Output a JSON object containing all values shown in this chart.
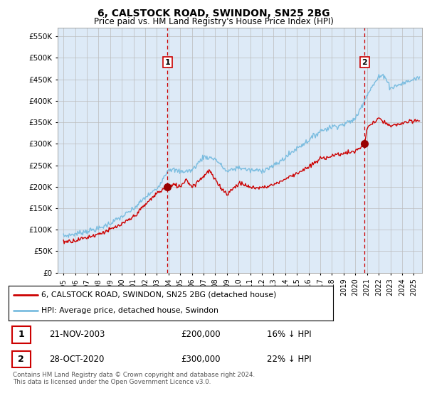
{
  "title": "6, CALSTOCK ROAD, SWINDON, SN25 2BG",
  "subtitle": "Price paid vs. HM Land Registry's House Price Index (HPI)",
  "legend_line1": "6, CALSTOCK ROAD, SWINDON, SN25 2BG (detached house)",
  "legend_line2": "HPI: Average price, detached house, Swindon",
  "footnote": "Contains HM Land Registry data © Crown copyright and database right 2024.\nThis data is licensed under the Open Government Licence v3.0.",
  "transaction1_date": "21-NOV-2003",
  "transaction1_price": "£200,000",
  "transaction1_hpi": "16% ↓ HPI",
  "transaction2_date": "28-OCT-2020",
  "transaction2_price": "£300,000",
  "transaction2_hpi": "22% ↓ HPI",
  "transaction1_x": 2003.9,
  "transaction1_y": 200000,
  "transaction2_x": 2020.8,
  "transaction2_y": 300000,
  "hpi_color": "#7bbde0",
  "price_color": "#cc0000",
  "marker_color": "#990000",
  "vline_color": "#cc0000",
  "background_color": "#ddeaf7",
  "plot_bg": "#ffffff",
  "ylim_min": 0,
  "ylim_max": 570000,
  "yticks": [
    0,
    50000,
    100000,
    150000,
    200000,
    250000,
    300000,
    350000,
    400000,
    450000,
    500000,
    550000
  ],
  "ytick_labels": [
    "£0",
    "£50K",
    "£100K",
    "£150K",
    "£200K",
    "£250K",
    "£300K",
    "£350K",
    "£400K",
    "£450K",
    "£500K",
    "£550K"
  ],
  "xlim_min": 1994.5,
  "xlim_max": 2025.7,
  "hpi_anchors_x": [
    1995,
    1996,
    1997,
    1998,
    1999,
    2000,
    2001,
    2002,
    2003,
    2004,
    2005,
    2006,
    2007,
    2008,
    2009,
    2010,
    2011,
    2012,
    2013,
    2014,
    2015,
    2016,
    2017,
    2018,
    2019,
    2020,
    2021,
    2022,
    2022.5,
    2023,
    2024,
    2025,
    2025.5
  ],
  "hpi_anchors_y": [
    85000,
    90000,
    97000,
    102000,
    115000,
    130000,
    148000,
    175000,
    195000,
    242000,
    235000,
    238000,
    270000,
    265000,
    235000,
    245000,
    238000,
    238000,
    248000,
    268000,
    290000,
    308000,
    330000,
    340000,
    345000,
    358000,
    415000,
    455000,
    460000,
    430000,
    440000,
    450000,
    455000
  ],
  "price_anchors_x": [
    1995,
    1996,
    1997,
    1998,
    1999,
    2000,
    2001,
    2002,
    2003,
    2003.9,
    2004,
    2004.5,
    2005,
    2005.5,
    2006,
    2006.5,
    2007,
    2007.5,
    2008,
    2008.5,
    2009,
    2009.5,
    2010,
    2010.5,
    2011,
    2012,
    2013,
    2014,
    2015,
    2016,
    2017,
    2018,
    2019,
    2020,
    2020.8,
    2021,
    2022,
    2022.5,
    2023,
    2024,
    2025,
    2025.5
  ],
  "price_anchors_y": [
    72000,
    75000,
    82000,
    90000,
    100000,
    112000,
    130000,
    158000,
    185000,
    200000,
    198000,
    205000,
    200000,
    218000,
    200000,
    212000,
    225000,
    238000,
    215000,
    198000,
    183000,
    195000,
    208000,
    205000,
    198000,
    198000,
    205000,
    218000,
    232000,
    245000,
    265000,
    272000,
    278000,
    282000,
    300000,
    338000,
    358000,
    350000,
    340000,
    348000,
    352000,
    355000
  ]
}
